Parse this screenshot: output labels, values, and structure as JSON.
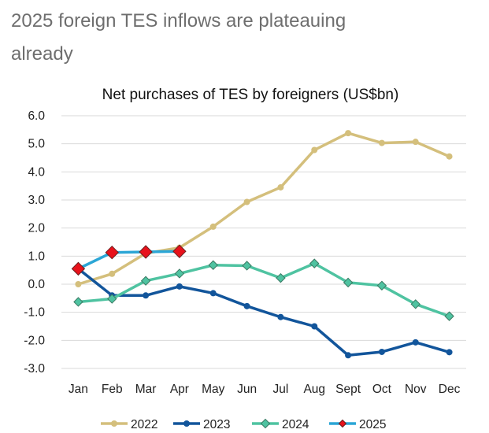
{
  "headline": {
    "line1": "2025 foreign TES inflows are plateauing",
    "line2": "already"
  },
  "chart_data": {
    "type": "line",
    "title": "Net purchases of TES by foreigners (US$bn)",
    "categories": [
      "Jan",
      "Feb",
      "Mar",
      "Apr",
      "May",
      "Jun",
      "Jul",
      "Aug",
      "Sept",
      "Oct",
      "Nov",
      "Dec"
    ],
    "y_ticks": [
      "6.0",
      "5.0",
      "4.0",
      "3.0",
      "2.0",
      "1.0",
      "0.0",
      "-1.0",
      "-2.0",
      "-3.0"
    ],
    "ylim": [
      -3,
      6
    ],
    "grid": true,
    "legend_position": "bottom",
    "series": [
      {
        "name": "2022",
        "color": "#d4bf7c",
        "marker": "circle",
        "values": [
          0.0,
          0.37,
          1.1,
          1.3,
          2.05,
          2.93,
          3.45,
          4.78,
          5.38,
          5.03,
          5.07,
          4.55
        ]
      },
      {
        "name": "2023",
        "color": "#12559b",
        "marker": "circle",
        "values": [
          0.55,
          -0.4,
          -0.4,
          -0.08,
          -0.32,
          -0.78,
          -1.17,
          -1.5,
          -2.53,
          -2.41,
          -2.07,
          -2.42
        ]
      },
      {
        "name": "2024",
        "color": "#4fc3a1",
        "marker": "diamond",
        "values": [
          -0.63,
          -0.52,
          0.12,
          0.38,
          0.68,
          0.66,
          0.22,
          0.74,
          0.06,
          -0.05,
          -0.71,
          -1.14
        ]
      },
      {
        "name": "2025",
        "color": "#2ba6d6",
        "marker": "red-diamond",
        "marker_color": "#e8121b",
        "values": [
          0.55,
          1.13,
          1.15,
          1.17,
          null,
          null,
          null,
          null,
          null,
          null,
          null,
          null
        ]
      }
    ]
  }
}
